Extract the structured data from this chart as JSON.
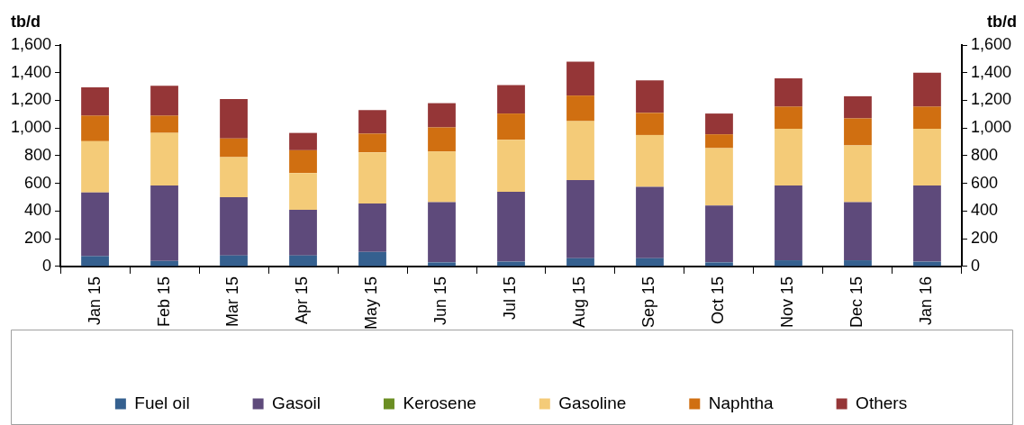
{
  "chart_data": {
    "type": "bar",
    "stacked": true,
    "ylabel": "tb/d",
    "y2label": "tb/d",
    "categories": [
      "Jan 15",
      "Feb 15",
      "Mar 15",
      "Apr 15",
      "May 15",
      "Jun 15",
      "Jul 15",
      "Aug 15",
      "Sep 15",
      "Oct 15",
      "Nov 15",
      "Dec 15",
      "Jan 16"
    ],
    "series": [
      {
        "name": "Fuel oil",
        "color": "#35608f",
        "values": [
          75,
          40,
          80,
          80,
          105,
          30,
          35,
          60,
          60,
          30,
          45,
          45,
          35
        ]
      },
      {
        "name": "Gasoil",
        "color": "#5e4a7b",
        "values": [
          460,
          545,
          420,
          330,
          350,
          435,
          505,
          565,
          515,
          410,
          540,
          420,
          550
        ]
      },
      {
        "name": "Kerosene",
        "color": "#6b8e23",
        "values": [
          0,
          0,
          0,
          0,
          0,
          0,
          0,
          0,
          0,
          0,
          0,
          0,
          0
        ]
      },
      {
        "name": "Gasoline",
        "color": "#f4cb78",
        "values": [
          370,
          380,
          290,
          265,
          370,
          365,
          375,
          425,
          375,
          415,
          410,
          410,
          410
        ]
      },
      {
        "name": "Naphtha",
        "color": "#d06f11",
        "values": [
          185,
          125,
          135,
          165,
          135,
          175,
          190,
          185,
          160,
          100,
          160,
          195,
          160
        ]
      },
      {
        "name": "Others",
        "color": "#953637",
        "values": [
          205,
          215,
          285,
          125,
          170,
          175,
          205,
          245,
          235,
          150,
          205,
          160,
          245
        ]
      }
    ],
    "ylim": [
      0,
      1600
    ],
    "yticks": [
      0,
      200,
      400,
      600,
      800,
      {
        "value": 1000,
        "label": "1,000"
      },
      {
        "value": 1200,
        "label": "1,200"
      },
      {
        "value": 1400,
        "label": "1,400"
      },
      {
        "value": 1600,
        "label": "1,600"
      }
    ],
    "y2lim": [
      0,
      1600
    ],
    "y2ticks": [
      0,
      200,
      400,
      600,
      800,
      {
        "value": 1000,
        "label": "1,000"
      },
      {
        "value": 1200,
        "label": "1,200"
      },
      {
        "value": 1400,
        "label": "1,400"
      },
      {
        "value": 1600,
        "label": "1,600"
      }
    ],
    "legend": "bottom"
  }
}
